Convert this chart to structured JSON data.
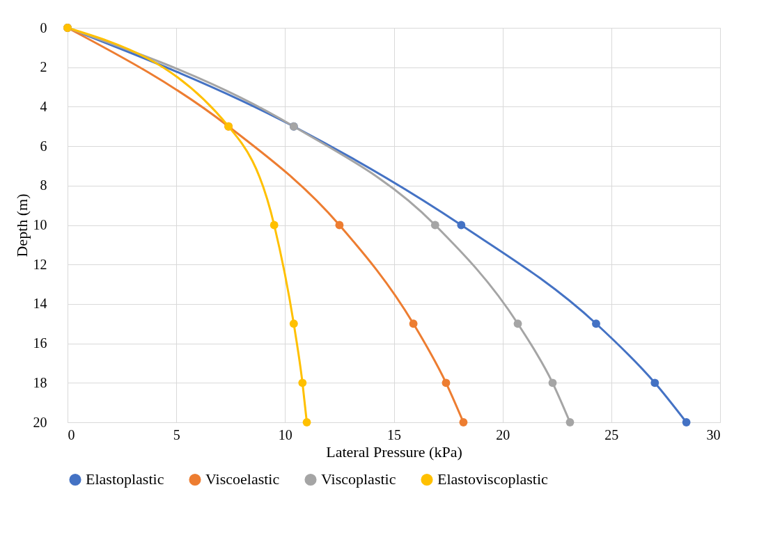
{
  "chart_data": {
    "type": "line",
    "xlabel": "Lateral Pressure (kPa)",
    "ylabel": "Depth (m)",
    "xlim": [
      0,
      30
    ],
    "xticks": [
      0,
      5,
      10,
      15,
      20,
      25,
      30
    ],
    "ylim": [
      20,
      0
    ],
    "yticks": [
      0,
      2,
      4,
      6,
      8,
      10,
      12,
      14,
      16,
      18,
      20
    ],
    "grid": true,
    "legend": "bottom",
    "marker": "circle",
    "line_style": "solid",
    "series": [
      {
        "name": "Elastoplastic",
        "color": "#4472c4",
        "x": [
          0,
          10.4,
          18.1,
          24.3,
          27.0,
          28.45
        ],
        "values": [
          0,
          5,
          10,
          15,
          18,
          20
        ]
      },
      {
        "name": "Viscoelastic",
        "color": "#ed7d31",
        "x": [
          0,
          7.4,
          12.5,
          15.9,
          17.4,
          18.2
        ],
        "values": [
          0,
          5,
          10,
          15,
          18,
          20
        ]
      },
      {
        "name": "Viscoplastic",
        "color": "#a5a5a5",
        "x": [
          0,
          10.4,
          16.9,
          20.7,
          22.3,
          23.1
        ],
        "values": [
          0,
          5,
          10,
          15,
          18,
          20
        ]
      },
      {
        "name": "Elastoviscoplastic",
        "color": "#ffc000",
        "x": [
          0,
          7.4,
          9.5,
          10.4,
          10.8,
          11.0
        ],
        "values": [
          0,
          5,
          10,
          15,
          18,
          20
        ]
      }
    ]
  }
}
